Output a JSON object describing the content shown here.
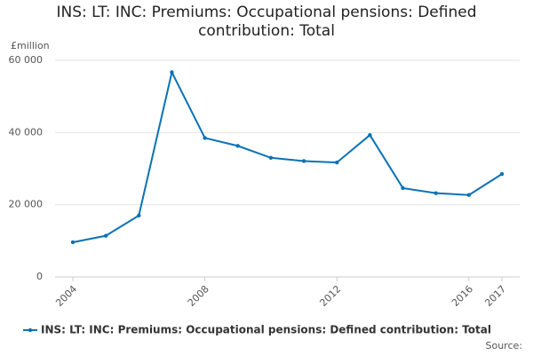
{
  "chart_data": {
    "type": "line",
    "title": "INS: LT: INC: Premiums: Occupational pensions: Defined contribution: Total",
    "y_label": "£million",
    "source": "Source:",
    "x": [
      2004,
      2005,
      2006,
      2007,
      2008,
      2009,
      2010,
      2011,
      2012,
      2013,
      2014,
      2015,
      2016,
      2017
    ],
    "series": [
      {
        "name": "INS: LT: INC: Premiums: Occupational pensions: Defined contribution: Total",
        "color": "#0b72b5",
        "values": [
          9600,
          11400,
          17000,
          56700,
          38500,
          36300,
          33000,
          32100,
          31700,
          39300,
          24600,
          23200,
          22700,
          28500
        ]
      }
    ],
    "xlim": [
      2004,
      2017
    ],
    "xticks": [
      2004,
      2008,
      2012,
      2016,
      2017
    ],
    "ylim": [
      0,
      60000
    ],
    "yticks": [
      0,
      {
        "value": 20000,
        "label": "20 000"
      },
      {
        "value": 40000,
        "label": "40 000"
      },
      {
        "value": 60000,
        "label": "60 000"
      }
    ],
    "grid": true,
    "legend": "bottom"
  }
}
